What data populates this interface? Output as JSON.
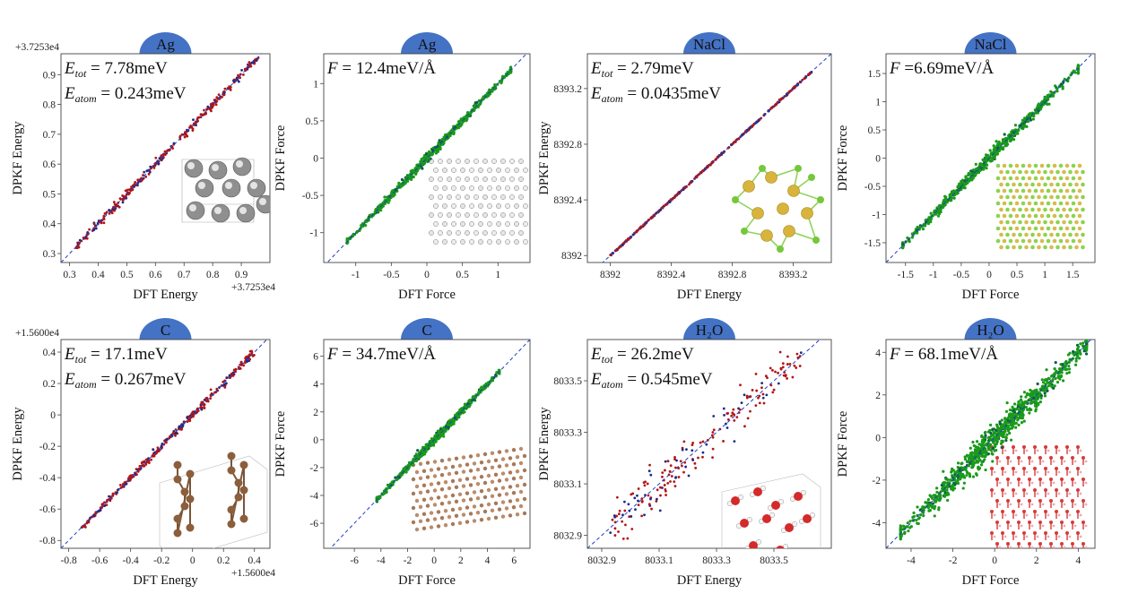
{
  "colors": {
    "badge": "#4472c4",
    "parity_line": "#1f3fbf",
    "energy_points": "#b41414",
    "energy_points_alt": "#1b2b8a",
    "force_points": "#1a9a1a",
    "force_points_edge": "#0d5f4a"
  },
  "chart_data": [
    {
      "panel": "Ag-energy",
      "type": "scatter",
      "badge": "Ag",
      "xlabel": "DFT Energy",
      "ylabel": "DPKF Energy",
      "xlim": [
        0.27,
        1.0
      ],
      "ylim": [
        0.27,
        0.97
      ],
      "xticks": [
        0.3,
        0.4,
        0.5,
        0.6,
        0.7,
        0.8,
        0.9
      ],
      "yticks": [
        0.3,
        0.4,
        0.5,
        0.6,
        0.7,
        0.8,
        0.9
      ],
      "x_offset": "+3.7253e4",
      "y_offset": "+3.7253e4",
      "metric1": {
        "sym": "E",
        "sub": "tot",
        "text": " = 7.78meV"
      },
      "metric2": {
        "sym": "E",
        "sub": "atom",
        "text": " = 0.243meV"
      },
      "point_range": [
        0.32,
        0.96
      ],
      "noise": 0.006,
      "n": 320,
      "inset": "ag-crystal-icon"
    },
    {
      "panel": "Ag-force",
      "type": "scatter",
      "badge": "Ag",
      "xlabel": "DFT Force",
      "ylabel": "DPKF Force",
      "xlim": [
        -1.45,
        1.45
      ],
      "ylim": [
        -1.4,
        1.4
      ],
      "xticks": [
        -1.0,
        -0.5,
        0.0,
        0.5,
        1.0
      ],
      "yticks": [
        -1.0,
        -0.5,
        0.0,
        0.5,
        1.0
      ],
      "metric1": {
        "sym": "F",
        "sub": "",
        "text": " = 12.4meV/Å"
      },
      "point_range": [
        -1.12,
        1.18
      ],
      "noise": 0.018,
      "n": 650,
      "inset": "ag-lattice-icon"
    },
    {
      "panel": "NaCl-energy",
      "type": "scatter",
      "badge": "NaCl",
      "xlabel": "DFT Energy",
      "ylabel": "DPKF Energy",
      "xlim": [
        8391.85,
        8393.45
      ],
      "ylim": [
        8391.95,
        8393.45
      ],
      "xticks": [
        8392.0,
        8392.4,
        8392.8,
        8393.2
      ],
      "yticks": [
        8392.0,
        8392.4,
        8392.8,
        8393.2
      ],
      "metric1": {
        "sym": "E",
        "sub": "tot",
        "text": " = 2.79meV"
      },
      "metric2": {
        "sym": "E",
        "sub": "atom",
        "text": " = 0.0435meV"
      },
      "point_range": [
        8392.0,
        8393.32
      ],
      "noise": 0.003,
      "n": 380,
      "inset": "nacl-cluster-icon"
    },
    {
      "panel": "NaCl-force",
      "type": "scatter",
      "badge": "NaCl",
      "xlabel": "DFT Force",
      "ylabel": "DPKF Force",
      "xlim": [
        -1.85,
        1.9
      ],
      "ylim": [
        -1.85,
        1.85
      ],
      "xticks": [
        -1.5,
        -1.0,
        -0.5,
        -0.0,
        0.5,
        1.0,
        1.5
      ],
      "yticks": [
        -1.5,
        -1.0,
        -0.5,
        0.0,
        0.5,
        1.0,
        1.5
      ],
      "metric1": {
        "sym": "F",
        "sub": "",
        "text": " =6.69meV/Å"
      },
      "point_range": [
        -1.55,
        1.6
      ],
      "noise": 0.035,
      "n": 650,
      "inset": "nacl-lattice-icon"
    },
    {
      "panel": "C-energy",
      "type": "scatter",
      "badge": "C",
      "xlabel": "DFT Energy",
      "ylabel": "DPKF Energy",
      "xlim": [
        -0.85,
        0.5
      ],
      "ylim": [
        -0.85,
        0.48
      ],
      "xticks": [
        -0.8,
        -0.6,
        -0.4,
        -0.2,
        0.0,
        0.2,
        0.4
      ],
      "yticks": [
        -0.8,
        -0.6,
        -0.4,
        -0.2,
        0.0,
        0.2,
        0.4
      ],
      "x_offset": "+1.5600e4",
      "y_offset": "+1.5600e4",
      "metric1": {
        "sym": "E",
        "sub": "tot",
        "text": " = 17.1meV"
      },
      "metric2": {
        "sym": "E",
        "sub": "atom",
        "text": " = 0.267meV"
      },
      "point_range": [
        -0.72,
        0.4
      ],
      "noise": 0.012,
      "n": 320,
      "inset": "graphite-icon"
    },
    {
      "panel": "C-force",
      "type": "scatter",
      "badge": "C",
      "xlabel": "DFT Force",
      "ylabel": "DPKF Force",
      "xlim": [
        -8.3,
        7.2
      ],
      "ylim": [
        -7.8,
        7.2
      ],
      "xticks": [
        -6,
        -4,
        -2,
        0,
        2,
        4,
        6
      ],
      "yticks": [
        -6,
        -4,
        -2,
        0,
        2,
        4,
        6
      ],
      "metric1": {
        "sym": "F",
        "sub": "",
        "text": " = 34.7meV/Å"
      },
      "point_range": [
        -4.3,
        4.9
      ],
      "noise": 0.09,
      "n": 650,
      "inset": "carbon-lattice-icon"
    },
    {
      "panel": "H2O-energy",
      "type": "scatter",
      "badge": "H₂O",
      "xlabel": "DFT Energy",
      "ylabel": "DPKF Energy",
      "xlim": [
        8032.85,
        8033.7
      ],
      "ylim": [
        8032.85,
        8033.66
      ],
      "xticks": [
        8032.9,
        8033.1,
        8033.3,
        8033.5
      ],
      "yticks": [
        8032.9,
        8033.1,
        8033.3,
        8033.5
      ],
      "metric1": {
        "sym": "E",
        "sub": "tot",
        "text": " = 26.2meV"
      },
      "metric2": {
        "sym": "E",
        "sub": "atom",
        "text": " = 0.545meV"
      },
      "point_range": [
        8032.93,
        8033.6
      ],
      "noise": 0.04,
      "n": 190,
      "inset": "water-molecules-icon"
    },
    {
      "panel": "H2O-force",
      "type": "scatter",
      "badge": "H₂O",
      "xlabel": "DFT Force",
      "ylabel": "DPKF Force",
      "xlim": [
        -5.2,
        4.8
      ],
      "ylim": [
        -5.2,
        4.6
      ],
      "xticks": [
        -4,
        -2,
        0,
        2,
        4
      ],
      "yticks": [
        -4,
        -2,
        0,
        2,
        4
      ],
      "metric1": {
        "sym": "F",
        "sub": "",
        "text": " = 68.1meV/Å"
      },
      "point_range": [
        -4.5,
        4.4
      ],
      "noise": 0.22,
      "n": 900,
      "inset": "ice-lattice-icon"
    }
  ]
}
